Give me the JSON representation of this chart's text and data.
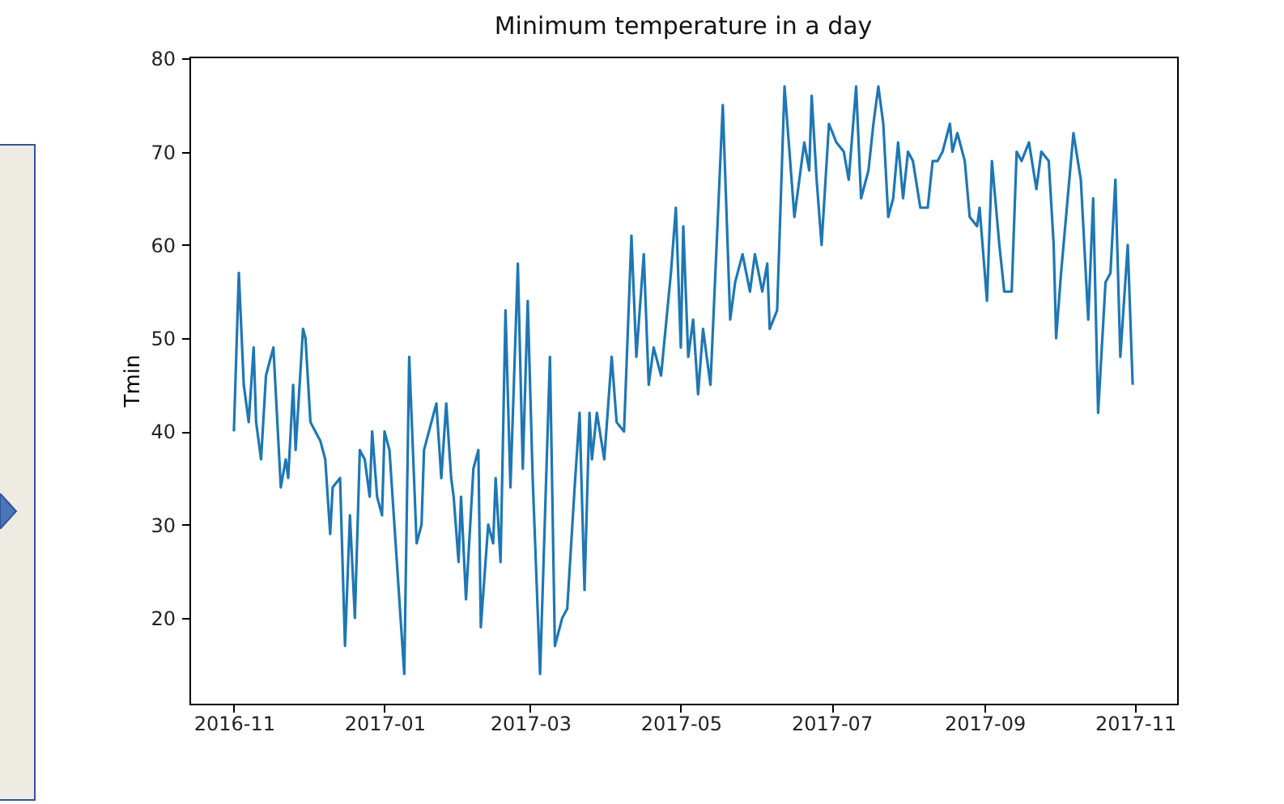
{
  "chart_data": {
    "type": "line",
    "title": "Minimum temperature in a day",
    "ylabel": "Tmin",
    "x": [
      "2016-11-01",
      "2016-11-03",
      "2016-11-05",
      "2016-11-06",
      "2016-11-07",
      "2016-11-09",
      "2016-11-10",
      "2016-11-12",
      "2016-11-14",
      "2016-11-17",
      "2016-11-18",
      "2016-11-20",
      "2016-11-22",
      "2016-11-23",
      "2016-11-25",
      "2016-11-26",
      "2016-11-29",
      "2016-11-30",
      "2016-12-02",
      "2016-12-04",
      "2016-12-06",
      "2016-12-08",
      "2016-12-10",
      "2016-12-11",
      "2016-12-14",
      "2016-12-16",
      "2016-12-18",
      "2016-12-20",
      "2016-12-22",
      "2016-12-24",
      "2016-12-26",
      "2016-12-27",
      "2016-12-29",
      "2016-12-31",
      "2017-01-01",
      "2017-01-03",
      "2017-01-06",
      "2017-01-09",
      "2017-01-11",
      "2017-01-14",
      "2017-01-16",
      "2017-01-17",
      "2017-01-22",
      "2017-01-24",
      "2017-01-26",
      "2017-01-28",
      "2017-01-29",
      "2017-01-31",
      "2017-02-01",
      "2017-02-03",
      "2017-02-06",
      "2017-02-08",
      "2017-02-09",
      "2017-02-12",
      "2017-02-14",
      "2017-02-15",
      "2017-02-17",
      "2017-02-19",
      "2017-02-21",
      "2017-02-24",
      "2017-02-26",
      "2017-02-28",
      "2017-03-02",
      "2017-03-05",
      "2017-03-09",
      "2017-03-11",
      "2017-03-14",
      "2017-03-16",
      "2017-03-19",
      "2017-03-21",
      "2017-03-23",
      "2017-03-25",
      "2017-03-26",
      "2017-03-28",
      "2017-03-31",
      "2017-04-03",
      "2017-04-05",
      "2017-04-08",
      "2017-04-11",
      "2017-04-13",
      "2017-04-16",
      "2017-04-18",
      "2017-04-20",
      "2017-04-23",
      "2017-04-27",
      "2017-04-29",
      "2017-05-01",
      "2017-05-02",
      "2017-05-04",
      "2017-05-06",
      "2017-05-08",
      "2017-05-10",
      "2017-05-13",
      "2017-05-18",
      "2017-05-21",
      "2017-05-23",
      "2017-05-26",
      "2017-05-29",
      "2017-05-31",
      "2017-06-03",
      "2017-06-05",
      "2017-06-06",
      "2017-06-09",
      "2017-06-12",
      "2017-06-16",
      "2017-06-20",
      "2017-06-22",
      "2017-06-23",
      "2017-06-25",
      "2017-06-27",
      "2017-06-30",
      "2017-07-03",
      "2017-07-06",
      "2017-07-08",
      "2017-07-11",
      "2017-07-13",
      "2017-07-16",
      "2017-07-18",
      "2017-07-20",
      "2017-07-22",
      "2017-07-24",
      "2017-07-26",
      "2017-07-28",
      "2017-07-30",
      "2017-08-01",
      "2017-08-03",
      "2017-08-06",
      "2017-08-09",
      "2017-08-11",
      "2017-08-13",
      "2017-08-15",
      "2017-08-18",
      "2017-08-19",
      "2017-08-21",
      "2017-08-24",
      "2017-08-26",
      "2017-08-29",
      "2017-08-30",
      "2017-09-02",
      "2017-09-04",
      "2017-09-07",
      "2017-09-09",
      "2017-09-12",
      "2017-09-14",
      "2017-09-16",
      "2017-09-19",
      "2017-09-22",
      "2017-09-24",
      "2017-09-27",
      "2017-09-29",
      "2017-09-30",
      "2017-10-02",
      "2017-10-05",
      "2017-10-07",
      "2017-10-10",
      "2017-10-13",
      "2017-10-15",
      "2017-10-17",
      "2017-10-20",
      "2017-10-22",
      "2017-10-24",
      "2017-10-26",
      "2017-10-29",
      "2017-10-31"
    ],
    "series": [
      {
        "color": "#1f77b4",
        "values": [
          40,
          57,
          45,
          43,
          41,
          49,
          41,
          37,
          46,
          49,
          44,
          34,
          37,
          35,
          45,
          38,
          51,
          50,
          41,
          40,
          39,
          37,
          29,
          34,
          35,
          17,
          31,
          20,
          38,
          37,
          33,
          40,
          33,
          31,
          40,
          38,
          26,
          14,
          48,
          28,
          30,
          38,
          43,
          35,
          43,
          35,
          33,
          26,
          33,
          22,
          36,
          38,
          19,
          30,
          28,
          35,
          26,
          53,
          34,
          58,
          36,
          54,
          35,
          14,
          48,
          17,
          20,
          21,
          34,
          42,
          23,
          42,
          37,
          42,
          37,
          48,
          41,
          40,
          61,
          48,
          59,
          45,
          49,
          46,
          57,
          64,
          49,
          62,
          48,
          52,
          44,
          51,
          45,
          75,
          52,
          56,
          59,
          55,
          59,
          55,
          58,
          51,
          53,
          77,
          63,
          71,
          68,
          76,
          67,
          60,
          73,
          71,
          70,
          67,
          77,
          65,
          68,
          73,
          77,
          73,
          63,
          65,
          71,
          65,
          70,
          69,
          64,
          64,
          69,
          69,
          70,
          73,
          70,
          72,
          69,
          63,
          62,
          64,
          54,
          69,
          60,
          55,
          55,
          70,
          69,
          71,
          66,
          70,
          69,
          60,
          50,
          57,
          66,
          72,
          67,
          52,
          65,
          42,
          56,
          57,
          67,
          48,
          60,
          45
        ]
      }
    ],
    "xlim": [
      "2016-10-14",
      "2017-11-18"
    ],
    "xticks": [
      "2016-11",
      "2017-01",
      "2017-03",
      "2017-05",
      "2017-07",
      "2017-09",
      "2017-11"
    ],
    "ylim": [
      10.8,
      80.2
    ],
    "yticks": [
      20,
      30,
      40,
      50,
      60,
      70,
      80
    ]
  }
}
